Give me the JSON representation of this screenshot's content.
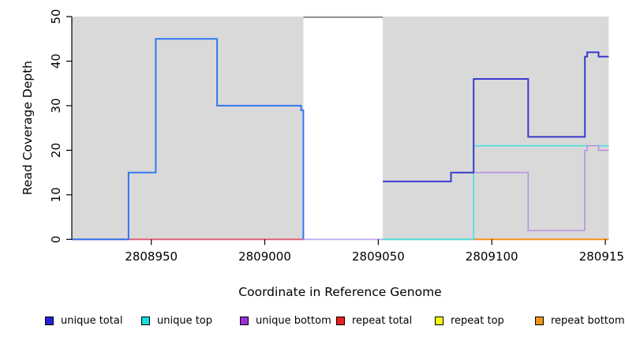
{
  "figure": {
    "x_title": "Coordinate in Reference Genome",
    "y_title": "Read Coverage Depth"
  },
  "legend": {
    "items": [
      {
        "label": "unique total",
        "color_key": "legend_unique_total"
      },
      {
        "label": "unique top",
        "color_key": "legend_unique_top"
      },
      {
        "label": "unique bottom",
        "color_key": "legend_unique_bottom"
      },
      {
        "label": "repeat total",
        "color_key": "legend_repeat_total"
      },
      {
        "label": "repeat top",
        "color_key": "legend_repeat_top"
      },
      {
        "label": "repeat bottom",
        "color_key": "legend_repeat_bottom"
      }
    ]
  },
  "colors": {
    "region_fill": "#d9d9d9",
    "masked_top_line": "#8a8a8a",
    "axis": "#000000",
    "unique_total_left": "#3377ee",
    "unique_total_right": "#3a3acd",
    "unique_top": "#4bdfe0",
    "unique_bottom": "#b592e2",
    "baseline_repeat_total": "#e0617f",
    "baseline_masked": "#c0b0f0",
    "baseline_mixed": "#84cb96",
    "baseline_repeat_bottom": "#f6921e",
    "legend_unique_total": "#2222dd",
    "legend_unique_top": "#16dcdc",
    "legend_unique_bottom": "#9b30d6",
    "legend_repeat_total": "#ee1c1c",
    "legend_repeat_top": "#f5f50f",
    "legend_repeat_bottom": "#f0941e"
  },
  "chart_data": {
    "type": "line",
    "subtype": "step-coverage",
    "x_axis": {
      "label": "Coordinate in Reference Genome",
      "range": [
        2808915,
        2809151.5
      ],
      "ticks": [
        2808950,
        2809000,
        2809050,
        2809100,
        2809150
      ],
      "tick_labels": [
        "2808950",
        "2809000",
        "2809050",
        "2809100",
        "2809150"
      ]
    },
    "y_axis": {
      "label": "Read Coverage Depth",
      "range": [
        0,
        50
      ],
      "ticks": [
        0,
        10,
        20,
        30,
        40,
        50
      ],
      "tick_labels": [
        "0",
        "10",
        "20",
        "30",
        "40",
        "50"
      ]
    },
    "grid": false,
    "legend_position": "bottom",
    "shaded_regions": [
      {
        "name": "unique-mappable-left",
        "from": 2808915,
        "to": 2809017
      },
      {
        "name": "unique-mappable-right",
        "from": 2809052,
        "to": 2809151.5
      }
    ],
    "masked_gap": {
      "from": 2809017,
      "to": 2809052,
      "top_value": 50
    },
    "baseline_segments": [
      {
        "name": "repeat-total-at-zero",
        "from": 2808915,
        "to": 2809017,
        "value": 0,
        "color_key": "baseline_repeat_total"
      },
      {
        "name": "masked-gap-at-zero",
        "from": 2809017,
        "to": 2809052,
        "value": 0,
        "color_key": "baseline_masked"
      },
      {
        "name": "unique-top-repeat-top-at-zero",
        "from": 2809052,
        "to": 2809092,
        "value": 0,
        "color_key": "baseline_mixed"
      },
      {
        "name": "repeat-bottom-at-zero",
        "from": 2809092,
        "to": 2809151.5,
        "value": 0,
        "color_key": "baseline_repeat_bottom"
      }
    ],
    "series": [
      {
        "name": "unique top",
        "color_key": "unique_top",
        "lw": 1.6,
        "steps": [
          [
            2809052,
            0
          ],
          [
            2809092,
            21
          ]
        ],
        "end": 2809151.5
      },
      {
        "name": "unique bottom",
        "color_key": "unique_bottom",
        "lw": 1.6,
        "steps": [
          [
            2809092,
            15
          ],
          [
            2809116,
            2
          ],
          [
            2809141,
            20
          ],
          [
            2809142,
            21
          ],
          [
            2809147,
            20
          ]
        ],
        "end": 2809151.5
      },
      {
        "name": "unique total (left block)",
        "color_key": "unique_total_left",
        "lw": 2,
        "steps": [
          [
            2808915,
            0
          ],
          [
            2808940,
            15
          ],
          [
            2808952,
            45
          ],
          [
            2808979,
            30
          ],
          [
            2809016,
            29
          ],
          [
            2809017,
            0
          ]
        ],
        "end": 2809017
      },
      {
        "name": "unique total (right block)",
        "color_key": "unique_total_right",
        "lw": 2,
        "steps": [
          [
            2809052,
            13
          ],
          [
            2809082,
            15
          ],
          [
            2809092,
            36
          ],
          [
            2809116,
            23
          ],
          [
            2809141,
            41
          ],
          [
            2809142,
            42
          ],
          [
            2809147,
            41
          ]
        ],
        "end": 2809151.5
      }
    ]
  }
}
